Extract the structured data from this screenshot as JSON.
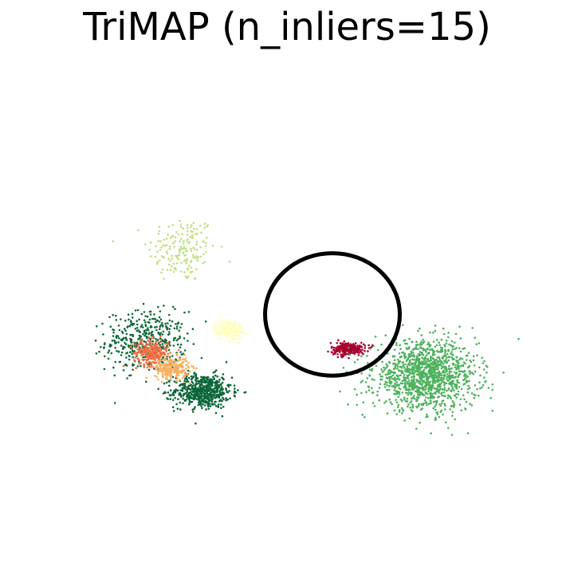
{
  "chart_data": {
    "type": "scatter",
    "title": "TriMAP (n_inliers=15)",
    "xlabel": "",
    "ylabel": "",
    "axes_visible": false,
    "grid": false,
    "legend": "none",
    "xlim": [
      0,
      100
    ],
    "ylim": [
      0,
      100
    ],
    "clusters": [
      {
        "color": "#c0e080",
        "x": 29,
        "y": 64,
        "spread_x": 6,
        "spread_y": 8,
        "points": 170
      },
      {
        "color": "#0e6a3a",
        "x": 22,
        "y": 40,
        "spread_x": 7,
        "spread_y": 7,
        "points": 420
      },
      {
        "color": "#0b6638",
        "x": 33,
        "y": 27,
        "spread_x": 5,
        "spread_y": 4,
        "points": 600
      },
      {
        "color": "#f26e42",
        "x": 23,
        "y": 37,
        "spread_x": 3,
        "spread_y": 3,
        "points": 260
      },
      {
        "color": "#f8b060",
        "x": 27,
        "y": 33,
        "spread_x": 3,
        "spread_y": 2.5,
        "points": 260
      },
      {
        "color": "#ffffbb",
        "x": 38,
        "y": 43,
        "spread_x": 2.5,
        "spread_y": 2.5,
        "points": 180
      },
      {
        "color": "#a8002f",
        "x": 61,
        "y": 38,
        "spread_x": 3,
        "spread_y": 1.5,
        "points": 240
      },
      {
        "color": "#4cb15c",
        "x": 76,
        "y": 31,
        "spread_x": 9,
        "spread_y": 8,
        "points": 1300
      }
    ],
    "annotation": {
      "shape": "ellipse",
      "center": [
        58,
        47
      ],
      "radius": [
        13,
        16
      ],
      "color": "#000000"
    }
  }
}
